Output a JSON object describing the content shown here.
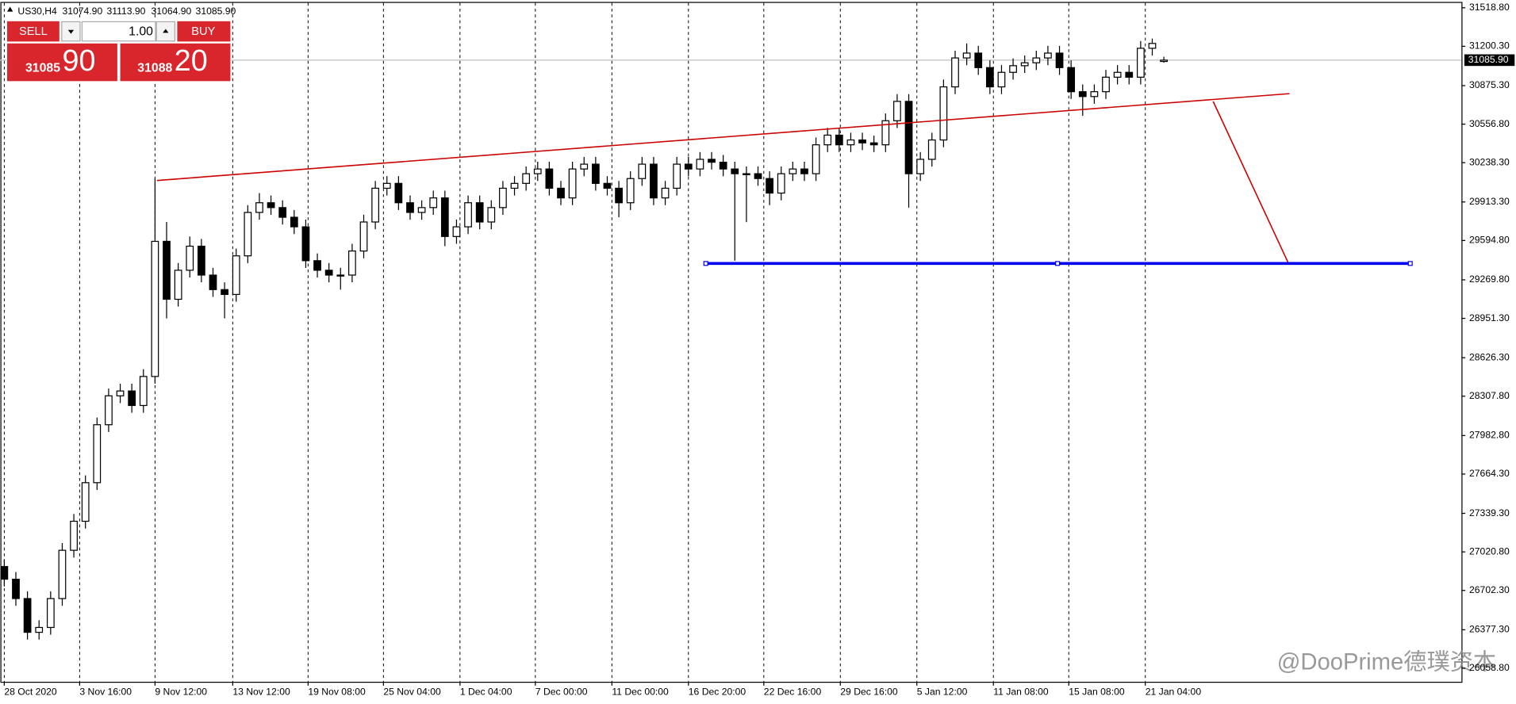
{
  "chart_data": {
    "type": "candlestick",
    "header": {
      "symbol": "US30,H4",
      "ohlc": [
        "31074.90",
        "31113.90",
        "31064.90",
        "31085.90"
      ]
    },
    "trade_panel": {
      "sell": "SELL",
      "buy": "BUY",
      "lots": "1.00",
      "sell_price": [
        "31085",
        "90"
      ],
      "buy_price": [
        "31088",
        "20"
      ]
    },
    "opens": [
      26900,
      26795,
      26635,
      26356,
      26396,
      26635,
      27034,
      27274,
      27593,
      28072,
      28311,
      28351,
      28231,
      28471,
      29588,
      29109,
      29349,
      29548,
      29309,
      29189,
      29149,
      29468,
      29827,
      29907,
      29867,
      29787,
      29708,
      29428,
      29349,
      29309,
      29309,
      29508,
      29748,
      30027,
      30067,
      29907,
      29827,
      29867,
      29947,
      29628,
      29708,
      29907,
      29748,
      29867,
      30027,
      30067,
      30147,
      30186,
      30027,
      29947,
      30186,
      30226,
      30067,
      30027,
      29907,
      30107,
      30226,
      29947,
      30027,
      30226,
      30186,
      30266,
      30242,
      30186,
      30147,
      30147,
      30107,
      29987,
      30147,
      30186,
      30147,
      30386,
      30466,
      30386,
      30426,
      30402,
      30386,
      30585,
      30745,
      30147,
      30266,
      30426,
      30865,
      31104,
      31144,
      31024,
      30865,
      30985,
      31040,
      31064,
      31104,
      31144,
      31024,
      30825,
      30785,
      30825,
      30945,
      30985,
      30945,
      31184,
      31074.9
    ],
    "highs": [
      26960,
      26855,
      26695,
      26456,
      26695,
      27094,
      27334,
      27653,
      28132,
      28371,
      28411,
      28411,
      28531,
      30107,
      29748,
      29409,
      29628,
      29608,
      29369,
      29249,
      29528,
      29887,
      29987,
      29967,
      29927,
      29847,
      29768,
      29488,
      29409,
      29369,
      29568,
      29808,
      30087,
      30127,
      30127,
      29967,
      29927,
      30007,
      30007,
      29768,
      29967,
      29967,
      29927,
      30087,
      30127,
      30207,
      30246,
      30246,
      30087,
      30246,
      30286,
      30286,
      30127,
      30087,
      30167,
      30286,
      30286,
      30087,
      30286,
      30286,
      30326,
      30326,
      30302,
      30246,
      30207,
      30207,
      30167,
      30207,
      30246,
      30246,
      30446,
      30526,
      30526,
      30486,
      30486,
      30462,
      30645,
      30805,
      30805,
      30326,
      30486,
      30925,
      31164,
      31224,
      31204,
      31084,
      31045,
      31100,
      31124,
      31164,
      31204,
      31204,
      31084,
      30885,
      30885,
      31005,
      31045,
      31045,
      31244,
      31264,
      31113.9
    ],
    "lows": [
      26735,
      26575,
      26296,
      26296,
      26336,
      26575,
      26974,
      27214,
      27533,
      28012,
      28251,
      28171,
      28171,
      28411,
      28951,
      29049,
      29289,
      29249,
      29129,
      28951,
      29089,
      29408,
      29767,
      29807,
      29727,
      29648,
      29368,
      29289,
      29249,
      29189,
      29249,
      29448,
      29688,
      29967,
      29847,
      29767,
      29767,
      29807,
      29548,
      29568,
      29648,
      29688,
      29688,
      29807,
      29967,
      30007,
      30087,
      29967,
      29887,
      29887,
      30126,
      30007,
      29967,
      29787,
      29847,
      30047,
      29887,
      29887,
      29967,
      30126,
      30126,
      30182,
      30126,
      29428,
      29747,
      30047,
      29887,
      29927,
      30087,
      30087,
      30087,
      30326,
      30326,
      30326,
      30342,
      30326,
      30326,
      30525,
      29867,
      30087,
      30206,
      30366,
      30805,
      31044,
      30964,
      30805,
      30805,
      30925,
      30980,
      31004,
      31044,
      30964,
      30765,
      30625,
      30725,
      30765,
      30885,
      30885,
      30885,
      31124,
      31064.9
    ],
    "closes": [
      26795,
      26635,
      26356,
      26396,
      26635,
      27034,
      27274,
      27593,
      28072,
      28311,
      28351,
      28231,
      28471,
      29588,
      29109,
      29349,
      29548,
      29309,
      29189,
      29149,
      29468,
      29827,
      29907,
      29867,
      29787,
      29708,
      29428,
      29349,
      29309,
      29309,
      29508,
      29748,
      30027,
      30067,
      29907,
      29827,
      29867,
      29947,
      29628,
      29708,
      29907,
      29748,
      29867,
      30027,
      30067,
      30147,
      30186,
      30027,
      29947,
      30186,
      30226,
      30067,
      30027,
      29907,
      30107,
      30226,
      29947,
      30027,
      30226,
      30186,
      30266,
      30242,
      30186,
      30147,
      30147,
      30107,
      29987,
      30147,
      30186,
      30147,
      30386,
      30466,
      30386,
      30426,
      30402,
      30386,
      30585,
      30745,
      30147,
      30266,
      30426,
      30865,
      31104,
      31144,
      31024,
      30865,
      30985,
      31040,
      31064,
      31104,
      31144,
      31024,
      30825,
      30785,
      30825,
      30945,
      30985,
      30945,
      31184,
      31224,
      31085.9
    ],
    "up_color": "#ffffff",
    "down_color": "#000000",
    "ylim": [
      25947,
      31583
    ],
    "yticks": [
      {
        "value": 31518.8,
        "label": "31518.80"
      },
      {
        "value": 31200.3,
        "label": "31200.30"
      },
      {
        "value": 30875.3,
        "label": "30875.30"
      },
      {
        "value": 30556.8,
        "label": "30556.80"
      },
      {
        "value": 30238.3,
        "label": "30238.30"
      },
      {
        "value": 29913.3,
        "label": "29913.30"
      },
      {
        "value": 29594.8,
        "label": "29594.80"
      },
      {
        "value": 29269.8,
        "label": "29269.80"
      },
      {
        "value": 28951.3,
        "label": "28951.30"
      },
      {
        "value": 28626.3,
        "label": "28626.30"
      },
      {
        "value": 28307.8,
        "label": "28307.80"
      },
      {
        "value": 27982.8,
        "label": "27982.80"
      },
      {
        "value": 27664.3,
        "label": "27664.30"
      },
      {
        "value": 27339.3,
        "label": "27339.30"
      },
      {
        "value": 27020.8,
        "label": "27020.80"
      },
      {
        "value": 26702.3,
        "label": "26702.30"
      },
      {
        "value": 26377.3,
        "label": "26377.30"
      },
      {
        "value": 26058.8,
        "label": "26058.80"
      }
    ],
    "xticks": [
      {
        "value": 0,
        "label": "28 Oct 2020"
      },
      {
        "value": 6.5,
        "label": "3 Nov 16:00"
      },
      {
        "value": 13,
        "label": "9 Nov 12:00"
      },
      {
        "value": 19.7,
        "label": "13 Nov 12:00"
      },
      {
        "value": 26.2,
        "label": "19 Nov 08:00"
      },
      {
        "value": 32.7,
        "label": "25 Nov 04:00"
      },
      {
        "value": 39.3,
        "label": "1 Dec 04:00"
      },
      {
        "value": 45.8,
        "label": "7 Dec 00:00"
      },
      {
        "value": 52.4,
        "label": "11 Dec 00:00"
      },
      {
        "value": 59,
        "label": "16 Dec 20:00"
      },
      {
        "value": 65.5,
        "label": "22 Dec 16:00"
      },
      {
        "value": 72.1,
        "label": "29 Dec 16:00"
      },
      {
        "value": 78.7,
        "label": "5 Jan 12:00"
      },
      {
        "value": 85.3,
        "label": "11 Jan 08:00"
      },
      {
        "value": 91.8,
        "label": "15 Jan 08:00"
      },
      {
        "value": 98.4,
        "label": "21 Jan 04:00"
      }
    ],
    "grid": true,
    "current_price": {
      "value": 31085.9,
      "label": "31085.90"
    },
    "trendline": {
      "start": 30091,
      "end": 30809,
      "color": "#cc0000"
    },
    "projection": {
      "start": 30745,
      "end": 29405,
      "color": "#cc0000"
    },
    "support": {
      "value": 29405,
      "color": "#0000ee"
    },
    "watermark": "@DooPrime德璞资本"
  }
}
